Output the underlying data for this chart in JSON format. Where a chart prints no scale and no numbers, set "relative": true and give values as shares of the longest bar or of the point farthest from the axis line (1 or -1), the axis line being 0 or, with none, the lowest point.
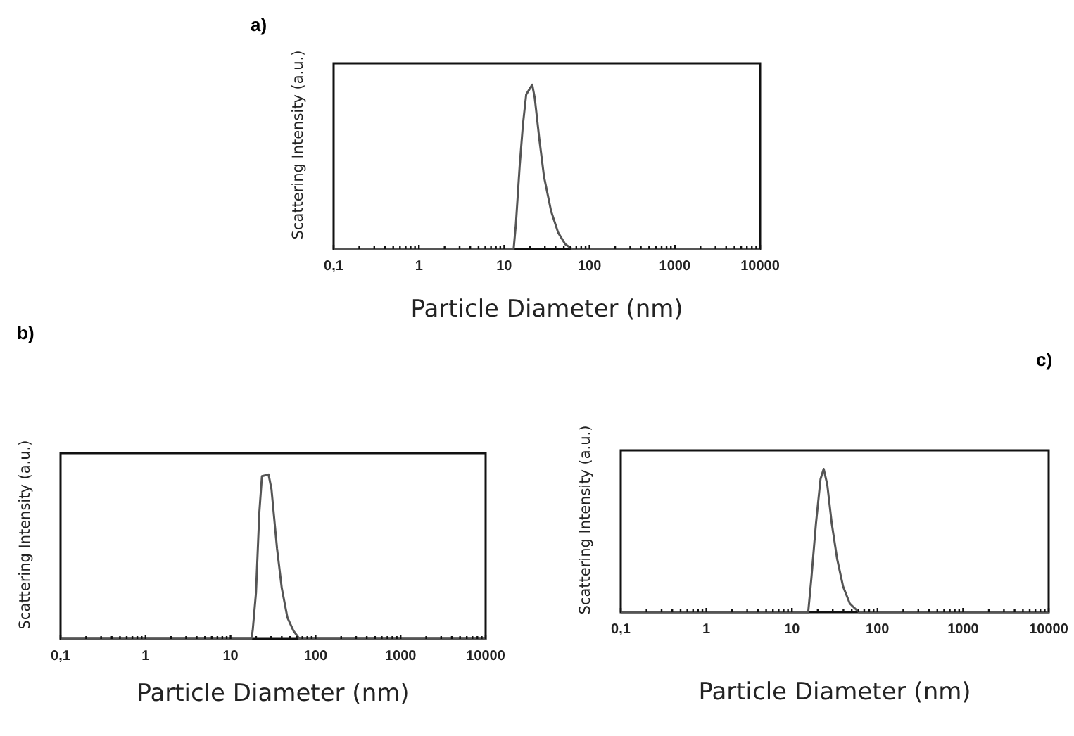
{
  "chart_data": [
    {
      "type": "line",
      "title": "a)",
      "xlabel": "Particle Diameter (nm)",
      "ylabel": "Scattering Intensity (a.u.)",
      "relative": true,
      "log": "x",
      "xlim": [
        0.1,
        10000
      ],
      "xticks": [
        {
          "value": 0.1,
          "label": "0,1"
        },
        {
          "value": 0.2,
          "label": null
        },
        {
          "value": 0.3,
          "label": null
        },
        {
          "value": 0.4,
          "label": null
        },
        {
          "value": 0.5,
          "label": null
        },
        {
          "value": 0.6,
          "label": null
        },
        {
          "value": 0.7,
          "label": null
        },
        {
          "value": 0.8,
          "label": null
        },
        {
          "value": 0.9,
          "label": null
        },
        1,
        {
          "value": 2,
          "label": null
        },
        {
          "value": 3,
          "label": null
        },
        {
          "value": 4,
          "label": null
        },
        {
          "value": 5,
          "label": null
        },
        {
          "value": 6,
          "label": null
        },
        {
          "value": 7,
          "label": null
        },
        {
          "value": 8,
          "label": null
        },
        {
          "value": 9,
          "label": null
        },
        10,
        {
          "value": 20,
          "label": null
        },
        {
          "value": 30,
          "label": null
        },
        {
          "value": 40,
          "label": null
        },
        {
          "value": 50,
          "label": null
        },
        {
          "value": 60,
          "label": null
        },
        {
          "value": 70,
          "label": null
        },
        {
          "value": 80,
          "label": null
        },
        {
          "value": 90,
          "label": null
        },
        100,
        {
          "value": 200,
          "label": null
        },
        {
          "value": 300,
          "label": null
        },
        {
          "value": 400,
          "label": null
        },
        {
          "value": 500,
          "label": null
        },
        {
          "value": 600,
          "label": null
        },
        {
          "value": 700,
          "label": null
        },
        {
          "value": 800,
          "label": null
        },
        {
          "value": 900,
          "label": null
        },
        1000,
        {
          "value": 2000,
          "label": null
        },
        {
          "value": 3000,
          "label": null
        },
        {
          "value": 4000,
          "label": null
        },
        {
          "value": 5000,
          "label": null
        },
        {
          "value": 6000,
          "label": null
        },
        {
          "value": 7000,
          "label": null
        },
        {
          "value": 8000,
          "label": null
        },
        {
          "value": 9000,
          "label": null
        },
        10000
      ],
      "grid": false,
      "marker": "none",
      "line_style": "solid",
      "series": [
        {
          "color": "#555555",
          "x": [
            0.1,
            12.9,
            13.7,
            15.2,
            16.6,
            18.1,
            21.3,
            22.8,
            25.8,
            29.3,
            35.5,
            42.9,
            51.9,
            62.7,
            10000
          ],
          "values": [
            0,
            0,
            0.15,
            0.51,
            0.76,
            0.94,
            1,
            0.92,
            0.67,
            0.44,
            0.23,
            0.1,
            0.03,
            0,
            0
          ]
        }
      ]
    },
    {
      "type": "line",
      "title": "b)",
      "xlabel": "Particle Diameter (nm)",
      "ylabel": "Scattering Intensity (a.u.)",
      "relative": true,
      "log": "x",
      "xlim": [
        0.1,
        10000
      ],
      "xticks": [
        {
          "value": 0.1,
          "label": "0,1"
        },
        {
          "value": 0.2,
          "label": null
        },
        {
          "value": 0.3,
          "label": null
        },
        {
          "value": 0.4,
          "label": null
        },
        {
          "value": 0.5,
          "label": null
        },
        {
          "value": 0.6,
          "label": null
        },
        {
          "value": 0.7,
          "label": null
        },
        {
          "value": 0.8,
          "label": null
        },
        {
          "value": 0.9,
          "label": null
        },
        1,
        {
          "value": 2,
          "label": null
        },
        {
          "value": 3,
          "label": null
        },
        {
          "value": 4,
          "label": null
        },
        {
          "value": 5,
          "label": null
        },
        {
          "value": 6,
          "label": null
        },
        {
          "value": 7,
          "label": null
        },
        {
          "value": 8,
          "label": null
        },
        {
          "value": 9,
          "label": null
        },
        10,
        {
          "value": 20,
          "label": null
        },
        {
          "value": 30,
          "label": null
        },
        {
          "value": 40,
          "label": null
        },
        {
          "value": 50,
          "label": null
        },
        {
          "value": 60,
          "label": null
        },
        {
          "value": 70,
          "label": null
        },
        {
          "value": 80,
          "label": null
        },
        {
          "value": 90,
          "label": null
        },
        100,
        {
          "value": 200,
          "label": null
        },
        {
          "value": 300,
          "label": null
        },
        {
          "value": 400,
          "label": null
        },
        {
          "value": 500,
          "label": null
        },
        {
          "value": 600,
          "label": null
        },
        {
          "value": 700,
          "label": null
        },
        {
          "value": 800,
          "label": null
        },
        {
          "value": 900,
          "label": null
        },
        1000,
        {
          "value": 2000,
          "label": null
        },
        {
          "value": 3000,
          "label": null
        },
        {
          "value": 4000,
          "label": null
        },
        {
          "value": 5000,
          "label": null
        },
        {
          "value": 6000,
          "label": null
        },
        {
          "value": 7000,
          "label": null
        },
        {
          "value": 8000,
          "label": null
        },
        {
          "value": 9000,
          "label": null
        },
        10000
      ],
      "grid": false,
      "marker": "none",
      "line_style": "solid",
      "series": [
        {
          "color": "#555555",
          "x": [
            0.1,
            17.5,
            18.2,
            19.9,
            21.8,
            23.4,
            28,
            30.3,
            35.2,
            40,
            46.6,
            54.9,
            64.7,
            10000
          ],
          "values": [
            0,
            0,
            0.05,
            0.28,
            0.77,
            0.99,
            1,
            0.91,
            0.55,
            0.31,
            0.13,
            0.05,
            0,
            0
          ]
        }
      ]
    },
    {
      "type": "line",
      "title": "c)",
      "xlabel": "Particle Diameter (nm)",
      "ylabel": "Scattering Intensity (a.u.)",
      "relative": true,
      "log": "x",
      "xlim": [
        0.1,
        10000
      ],
      "xticks": [
        {
          "value": 0.1,
          "label": "0,1"
        },
        {
          "value": 0.2,
          "label": null
        },
        {
          "value": 0.3,
          "label": null
        },
        {
          "value": 0.4,
          "label": null
        },
        {
          "value": 0.5,
          "label": null
        },
        {
          "value": 0.6,
          "label": null
        },
        {
          "value": 0.7,
          "label": null
        },
        {
          "value": 0.8,
          "label": null
        },
        {
          "value": 0.9,
          "label": null
        },
        1,
        {
          "value": 2,
          "label": null
        },
        {
          "value": 3,
          "label": null
        },
        {
          "value": 4,
          "label": null
        },
        {
          "value": 5,
          "label": null
        },
        {
          "value": 6,
          "label": null
        },
        {
          "value": 7,
          "label": null
        },
        {
          "value": 8,
          "label": null
        },
        {
          "value": 9,
          "label": null
        },
        10,
        {
          "value": 20,
          "label": null
        },
        {
          "value": 30,
          "label": null
        },
        {
          "value": 40,
          "label": null
        },
        {
          "value": 50,
          "label": null
        },
        {
          "value": 60,
          "label": null
        },
        {
          "value": 70,
          "label": null
        },
        {
          "value": 80,
          "label": null
        },
        {
          "value": 90,
          "label": null
        },
        100,
        {
          "value": 200,
          "label": null
        },
        {
          "value": 300,
          "label": null
        },
        {
          "value": 400,
          "label": null
        },
        {
          "value": 500,
          "label": null
        },
        {
          "value": 600,
          "label": null
        },
        {
          "value": 700,
          "label": null
        },
        {
          "value": 800,
          "label": null
        },
        {
          "value": 900,
          "label": null
        },
        1000,
        {
          "value": 2000,
          "label": null
        },
        {
          "value": 3000,
          "label": null
        },
        {
          "value": 4000,
          "label": null
        },
        {
          "value": 5000,
          "label": null
        },
        {
          "value": 6000,
          "label": null
        },
        {
          "value": 7000,
          "label": null
        },
        {
          "value": 8000,
          "label": null
        },
        {
          "value": 9000,
          "label": null
        },
        10000
      ],
      "grid": false,
      "marker": "none",
      "line_style": "solid",
      "series": [
        {
          "color": "#555555",
          "x": [
            0.1,
            15.5,
            16.9,
            19.1,
            21.6,
            23.5,
            25.9,
            29.2,
            33.8,
            39.6,
            47.5,
            60.5,
            10000
          ],
          "values": [
            0,
            0,
            0.24,
            0.62,
            0.93,
            1,
            0.89,
            0.62,
            0.37,
            0.18,
            0.06,
            0,
            0
          ]
        }
      ]
    }
  ]
}
